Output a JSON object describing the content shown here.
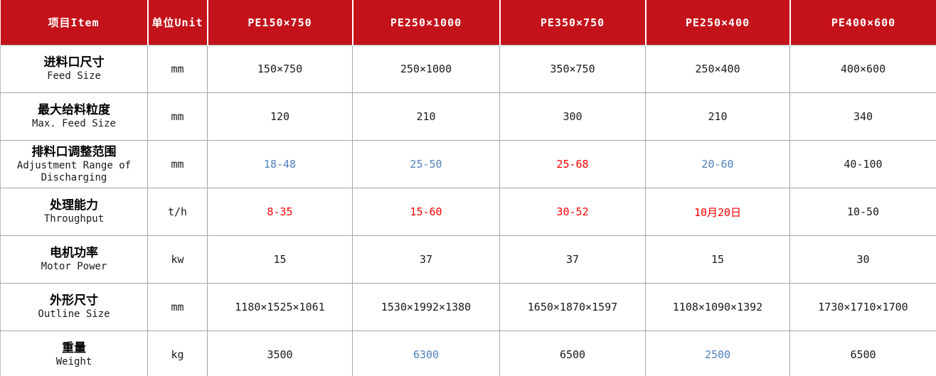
{
  "colors": {
    "header_bg": "#c4121a",
    "value_default": "#1a1a1a",
    "blue": "#4f81bd",
    "red": "#ff0000"
  },
  "table": {
    "header": {
      "item": "项目Item",
      "unit": "单位Unit",
      "models": [
        "PE150×750",
        "PE250×1000",
        "PE350×750",
        "PE250×400",
        "PE400×600"
      ]
    },
    "rows": [
      {
        "label_cn": "进料口尺寸",
        "label_en": "Feed Size",
        "unit": "mm",
        "values": [
          {
            "text": "150×750",
            "color": "default"
          },
          {
            "text": "250×1000",
            "color": "default"
          },
          {
            "text": "350×750",
            "color": "default"
          },
          {
            "text": "250×400",
            "color": "default"
          },
          {
            "text": "400×600",
            "color": "default"
          }
        ]
      },
      {
        "label_cn": "最大给料粒度",
        "label_en": "Max. Feed Size",
        "unit": "mm",
        "values": [
          {
            "text": "120",
            "color": "default"
          },
          {
            "text": "210",
            "color": "default"
          },
          {
            "text": "300",
            "color": "default"
          },
          {
            "text": "210",
            "color": "default"
          },
          {
            "text": "340",
            "color": "default"
          }
        ]
      },
      {
        "label_cn": "排料口调整范围",
        "label_en": "Adjustment Range of Discharging",
        "unit": "mm",
        "values": [
          {
            "text": "18-48",
            "color": "blue"
          },
          {
            "text": "25-50",
            "color": "blue"
          },
          {
            "text": "25-68",
            "color": "red"
          },
          {
            "text": "20-60",
            "color": "blue"
          },
          {
            "text": "40-100",
            "color": "default"
          }
        ]
      },
      {
        "label_cn": "处理能力",
        "label_en": "Throughput",
        "unit": "t/h",
        "values": [
          {
            "text": "8-35",
            "color": "red"
          },
          {
            "text": "15-60",
            "color": "red"
          },
          {
            "text": "30-52",
            "color": "red"
          },
          {
            "text": "10月20日",
            "color": "red"
          },
          {
            "text": "10-50",
            "color": "default"
          }
        ]
      },
      {
        "label_cn": "电机功率",
        "label_en": "Motor Power",
        "unit": "kw",
        "values": [
          {
            "text": "15",
            "color": "default"
          },
          {
            "text": "37",
            "color": "default"
          },
          {
            "text": "37",
            "color": "default"
          },
          {
            "text": "15",
            "color": "default"
          },
          {
            "text": "30",
            "color": "default"
          }
        ]
      },
      {
        "label_cn": "外形尺寸",
        "label_en": "Outline Size",
        "unit": "mm",
        "values": [
          {
            "text": "1180×1525×1061",
            "color": "default"
          },
          {
            "text": "1530×1992×1380",
            "color": "default"
          },
          {
            "text": "1650×1870×1597",
            "color": "default"
          },
          {
            "text": "1108×1090×1392",
            "color": "default"
          },
          {
            "text": "1730×1710×1700",
            "color": "default"
          }
        ]
      },
      {
        "label_cn": "重量",
        "label_en": "Weight",
        "unit": "kg",
        "values": [
          {
            "text": "3500",
            "color": "default"
          },
          {
            "text": "6300",
            "color": "blue"
          },
          {
            "text": "6500",
            "color": "default"
          },
          {
            "text": "2500",
            "color": "blue"
          },
          {
            "text": "6500",
            "color": "default"
          }
        ]
      }
    ]
  }
}
